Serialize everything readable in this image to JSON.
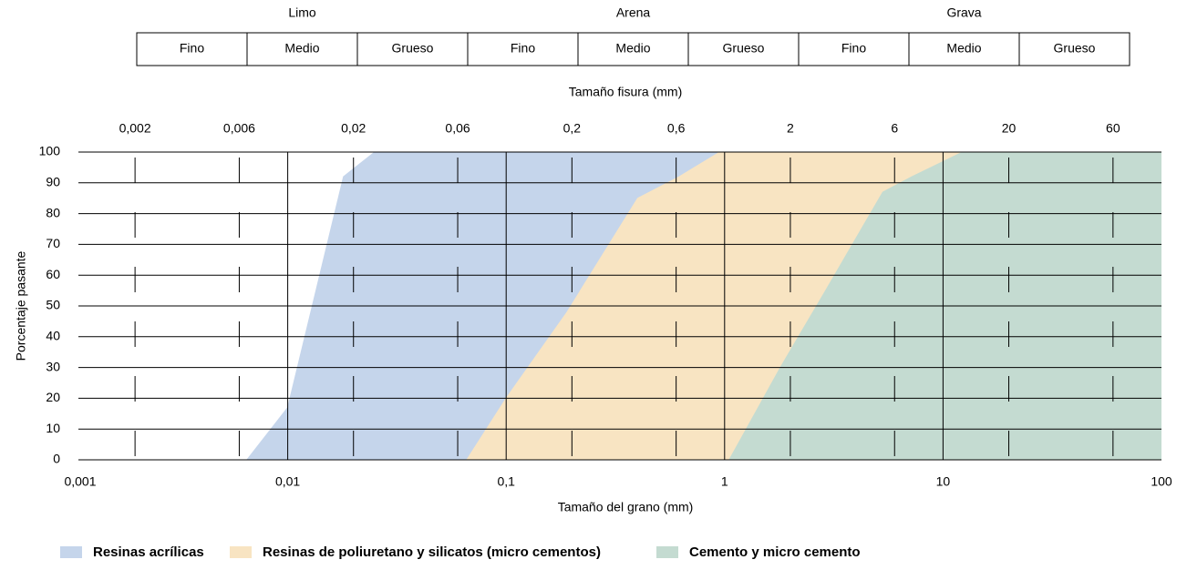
{
  "soil_classes": [
    {
      "name": "Limo",
      "subclasses": [
        "Fino",
        "Medio",
        "Grueso"
      ]
    },
    {
      "name": "Arena",
      "subclasses": [
        "Fino",
        "Medio",
        "Grueso"
      ]
    },
    {
      "name": "Grava",
      "subclasses": [
        "Fino",
        "Medio",
        "Grueso"
      ]
    }
  ],
  "chart_data": {
    "type": "area",
    "x2label": "Tamaño fisura (mm)",
    "xlabel": "Tamaño del grano (mm)",
    "ylabel": "Porcentaje pasante",
    "xscale": "log",
    "xlim": [
      0.001,
      100
    ],
    "ylim": [
      0,
      100
    ],
    "xticks": [
      {
        "value": 0.001,
        "label": "0,001"
      },
      {
        "value": 0.01,
        "label": "0,01"
      },
      {
        "value": 0.1,
        "label": "0,1"
      },
      1,
      10,
      100
    ],
    "x2ticks": [
      {
        "value": 0.002,
        "label": "0,002"
      },
      {
        "value": 0.006,
        "label": "0,006"
      },
      {
        "value": 0.02,
        "label": "0,02"
      },
      {
        "value": 0.06,
        "label": "0,06"
      },
      {
        "value": 0.2,
        "label": "0,2"
      },
      {
        "value": 0.6,
        "label": "0,6"
      },
      2,
      6,
      20,
      60
    ],
    "yticks": [
      0,
      10,
      20,
      30,
      40,
      50,
      60,
      70,
      80,
      90,
      100
    ],
    "grid": true,
    "legend": "bottom-left",
    "series": [
      {
        "name": "Resinas acrílicas",
        "color": "#c5d5eb",
        "x": [
          0.0065,
          0.01,
          0.018,
          0.025
        ],
        "values": [
          0,
          17,
          92,
          100
        ]
      },
      {
        "name": "Resinas de poliuretano y silicatos (micro cementos)",
        "color": "#f8e4c2",
        "x": [
          0.066,
          0.1,
          0.19,
          0.4,
          0.62,
          0.95
        ],
        "values": [
          0,
          20,
          48,
          85,
          92,
          100
        ]
      },
      {
        "name": "Cemento y micro cemento",
        "color": "#c4dbd1",
        "x": [
          1.05,
          1.8,
          2.9,
          5.3,
          7.2,
          12.3
        ],
        "values": [
          0,
          30,
          55,
          87,
          92,
          100
        ]
      }
    ]
  }
}
